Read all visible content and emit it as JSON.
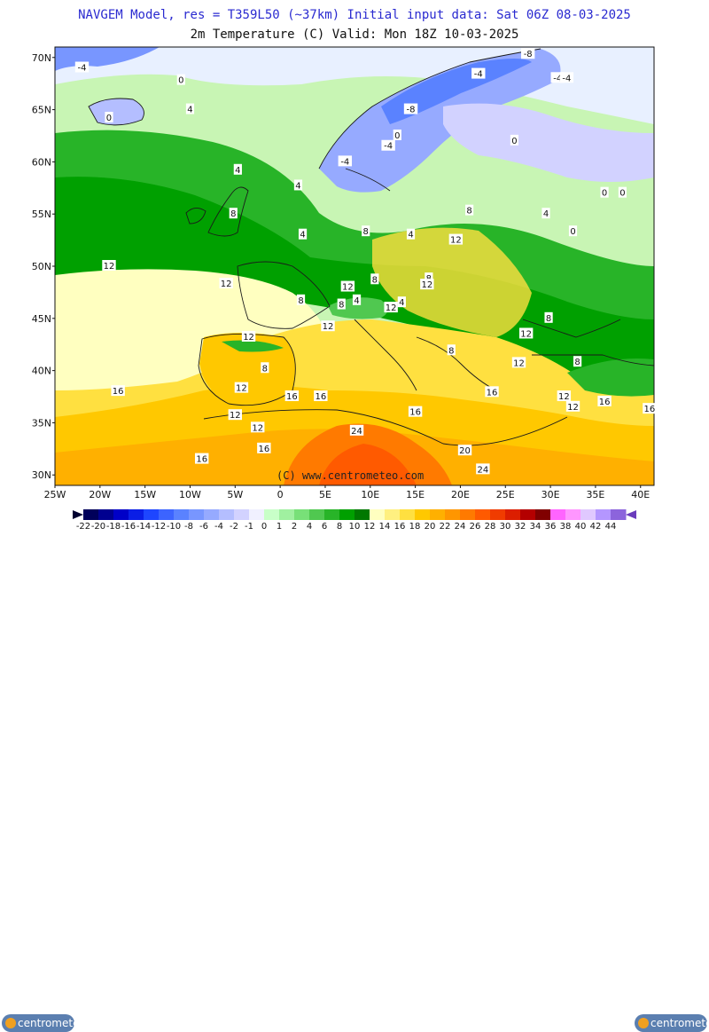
{
  "header": {
    "line1": "NAVGEM Model, res = T359L50 (~37km)   Initial input data: Sat 06Z 08-03-2025",
    "line2": "2m Temperature (C)  Valid: Mon 18Z 10-03-2025"
  },
  "map": {
    "lat_labels": [
      "70N",
      "65N",
      "60N",
      "55N",
      "50N",
      "45N",
      "40N",
      "35N",
      "30N"
    ],
    "lon_labels": [
      "25W",
      "20W",
      "15W",
      "10W",
      "5W",
      "0",
      "5E",
      "10E",
      "15E",
      "20E",
      "25E",
      "30E",
      "35E",
      "40E"
    ],
    "copyright": "(C)  www.centrometeo.com",
    "contour_labels": [
      {
        "text": "-4",
        "lon": -22,
        "lat": 69
      },
      {
        "text": "0",
        "lon": -11,
        "lat": 67.8
      },
      {
        "text": "4",
        "lon": -10,
        "lat": 65
      },
      {
        "text": "0",
        "lon": -19,
        "lat": 64.2
      },
      {
        "text": "-8",
        "lon": 27.5,
        "lat": 70.3
      },
      {
        "text": "-4",
        "lon": 22,
        "lat": 68.4
      },
      {
        "text": "-4",
        "lon": 30.8,
        "lat": 68
      },
      {
        "text": "-4",
        "lon": 31.8,
        "lat": 68
      },
      {
        "text": "-8",
        "lon": 14.5,
        "lat": 65
      },
      {
        "text": "-4",
        "lon": 12,
        "lat": 61.5
      },
      {
        "text": "0",
        "lon": 13,
        "lat": 62.5
      },
      {
        "text": "-4",
        "lon": 7.2,
        "lat": 60
      },
      {
        "text": "0",
        "lon": 26,
        "lat": 62
      },
      {
        "text": "4",
        "lon": -4.7,
        "lat": 59.2
      },
      {
        "text": "4",
        "lon": 2,
        "lat": 57.7
      },
      {
        "text": "0",
        "lon": 36,
        "lat": 57
      },
      {
        "text": "0",
        "lon": 38,
        "lat": 57
      },
      {
        "text": "8",
        "lon": -5.2,
        "lat": 55
      },
      {
        "text": "8",
        "lon": 21,
        "lat": 55.3
      },
      {
        "text": "4",
        "lon": 29.5,
        "lat": 55
      },
      {
        "text": "0",
        "lon": 32.5,
        "lat": 53.3
      },
      {
        "text": "4",
        "lon": 2.5,
        "lat": 53
      },
      {
        "text": "8",
        "lon": 9.5,
        "lat": 53.3
      },
      {
        "text": "4",
        "lon": 14.5,
        "lat": 53
      },
      {
        "text": "12",
        "lon": 19.5,
        "lat": 52.5
      },
      {
        "text": "12",
        "lon": -19,
        "lat": 50
      },
      {
        "text": "12",
        "lon": -6,
        "lat": 48.3
      },
      {
        "text": "12",
        "lon": 7.5,
        "lat": 48
      },
      {
        "text": "8",
        "lon": 10.5,
        "lat": 48.7
      },
      {
        "text": "8",
        "lon": 16.5,
        "lat": 48.8
      },
      {
        "text": "12",
        "lon": 16.3,
        "lat": 48.2
      },
      {
        "text": "4",
        "lon": 8.5,
        "lat": 46.7
      },
      {
        "text": "8",
        "lon": 6.8,
        "lat": 46.3
      },
      {
        "text": "12",
        "lon": 12.3,
        "lat": 46
      },
      {
        "text": "4",
        "lon": 13.5,
        "lat": 46.5
      },
      {
        "text": "8",
        "lon": 2.3,
        "lat": 46.7
      },
      {
        "text": "8",
        "lon": 29.8,
        "lat": 45
      },
      {
        "text": "12",
        "lon": 5.3,
        "lat": 44.2
      },
      {
        "text": "12",
        "lon": 27.3,
        "lat": 43.5
      },
      {
        "text": "12",
        "lon": -3.5,
        "lat": 43.2
      },
      {
        "text": "8",
        "lon": 19,
        "lat": 41.9
      },
      {
        "text": "8",
        "lon": -1.7,
        "lat": 40.2
      },
      {
        "text": "12",
        "lon": 26.5,
        "lat": 40.7
      },
      {
        "text": "8",
        "lon": 33,
        "lat": 40.8
      },
      {
        "text": "16",
        "lon": -18,
        "lat": 38
      },
      {
        "text": "12",
        "lon": -4.3,
        "lat": 38.3
      },
      {
        "text": "16",
        "lon": 1.3,
        "lat": 37.5
      },
      {
        "text": "16",
        "lon": 4.5,
        "lat": 37.5
      },
      {
        "text": "16",
        "lon": 23.5,
        "lat": 37.9
      },
      {
        "text": "12",
        "lon": 31.5,
        "lat": 37.5
      },
      {
        "text": "12",
        "lon": 32.5,
        "lat": 36.5
      },
      {
        "text": "16",
        "lon": 36,
        "lat": 37
      },
      {
        "text": "16",
        "lon": 15,
        "lat": 36
      },
      {
        "text": "16",
        "lon": 41,
        "lat": 36.3
      },
      {
        "text": "12",
        "lon": -5,
        "lat": 35.7
      },
      {
        "text": "12",
        "lon": -2.5,
        "lat": 34.5
      },
      {
        "text": "24",
        "lon": 8.5,
        "lat": 34.2
      },
      {
        "text": "16",
        "lon": -1.8,
        "lat": 32.5
      },
      {
        "text": "16",
        "lon": -8.7,
        "lat": 31.5
      },
      {
        "text": "20",
        "lon": 20.5,
        "lat": 32.3
      },
      {
        "text": "24",
        "lon": 22.5,
        "lat": 30.5
      }
    ]
  },
  "legend": {
    "values": [
      "-22",
      "-20",
      "-18",
      "-16",
      "-14",
      "-12",
      "-10",
      "-8",
      "-6",
      "-4",
      "-2",
      "-1",
      "0",
      "1",
      "2",
      "4",
      "6",
      "8",
      "10",
      "12",
      "14",
      "16",
      "18",
      "20",
      "22",
      "24",
      "26",
      "28",
      "30",
      "32",
      "34",
      "36",
      "38",
      "40",
      "42",
      "44"
    ],
    "colors": [
      "#00005a",
      "#000090",
      "#0000c8",
      "#0a1ee6",
      "#1e46ff",
      "#3c64ff",
      "#5a82ff",
      "#7896ff",
      "#96aaff",
      "#b4beff",
      "#d2d2ff",
      "#f0f0ff",
      "#c8ffc8",
      "#a0f0a0",
      "#78e078",
      "#50c850",
      "#28b428",
      "#00a000",
      "#007800",
      "#ffffc0",
      "#fff080",
      "#ffe040",
      "#ffc800",
      "#ffb000",
      "#ff9600",
      "#ff7a00",
      "#ff5a00",
      "#f03c00",
      "#dc1e00",
      "#b40000",
      "#800000",
      "#ff64ff",
      "#ff96ff",
      "#e0c8ff",
      "#b496ff",
      "#8c64dc"
    ],
    "logo_text": "centrometeo"
  },
  "colors": {
    "title_blue": "#2a2ad0",
    "ocean_green": "#1ea01e",
    "atlantic_cream": "#ffffc0",
    "land_yellow": "#ffe040",
    "sahara_orange": "#ff7a00",
    "scandinavia_blue": "#96aaff"
  }
}
